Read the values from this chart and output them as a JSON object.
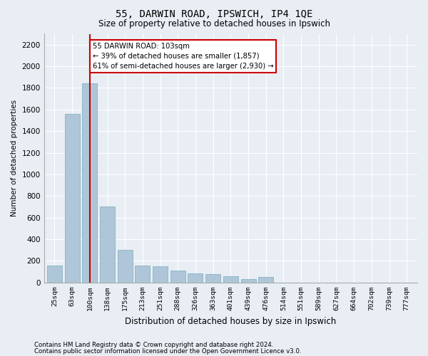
{
  "title1": "55, DARWIN ROAD, IPSWICH, IP4 1QE",
  "title2": "Size of property relative to detached houses in Ipswich",
  "xlabel": "Distribution of detached houses by size in Ipswich",
  "ylabel": "Number of detached properties",
  "footnote1": "Contains HM Land Registry data © Crown copyright and database right 2024.",
  "footnote2": "Contains public sector information licensed under the Open Government Licence v3.0.",
  "categories": [
    "25sqm",
    "63sqm",
    "100sqm",
    "138sqm",
    "175sqm",
    "213sqm",
    "251sqm",
    "288sqm",
    "326sqm",
    "363sqm",
    "401sqm",
    "439sqm",
    "476sqm",
    "514sqm",
    "551sqm",
    "589sqm",
    "627sqm",
    "664sqm",
    "702sqm",
    "739sqm",
    "777sqm"
  ],
  "values": [
    155,
    1560,
    1840,
    700,
    300,
    160,
    150,
    110,
    85,
    75,
    55,
    30,
    50,
    0,
    0,
    0,
    0,
    0,
    0,
    0,
    0
  ],
  "bar_color": "#aec6d8",
  "bar_edge_color": "#7aabbf",
  "vline_x_index": 2,
  "vline_color": "#cc0000",
  "annotation_line1": "55 DARWIN ROAD: 103sqm",
  "annotation_line2": "← 39% of detached houses are smaller (1,857)",
  "annotation_line3": "61% of semi-detached houses are larger (2,930) →",
  "annotation_box_color": "#ffffff",
  "annotation_box_edge": "#cc0000",
  "bg_color": "#e8eef4",
  "plot_bg_color": "#e8eef4",
  "ylim": [
    0,
    2300
  ],
  "yticks": [
    0,
    200,
    400,
    600,
    800,
    1000,
    1200,
    1400,
    1600,
    1800,
    2000,
    2200
  ]
}
